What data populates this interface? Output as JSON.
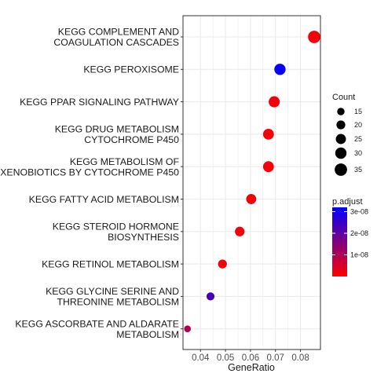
{
  "chart_data": {
    "type": "scatter",
    "title": "",
    "xlabel": "GeneRatio",
    "ylabel": "",
    "xlim": [
      0.033,
      0.088
    ],
    "x_ticks": [
      "0.04",
      "0.05",
      "0.06",
      "0.07",
      "0.08"
    ],
    "x_tick_values": [
      0.04,
      0.05,
      0.06,
      0.07,
      0.08
    ],
    "grid": true,
    "legend_position": "right",
    "terms": [
      {
        "label": [
          "KEGG COMPLEMENT AND",
          "COAGULATION CASCADES"
        ],
        "gene_ratio": 0.0855,
        "count": 35,
        "p_adjust": 1e-09
      },
      {
        "label": [
          "KEGG PEROXISOME"
        ],
        "gene_ratio": 0.0718,
        "count": 30,
        "p_adjust": 3.1e-08
      },
      {
        "label": [
          "KEGG PPAR SIGNALING PATHWAY"
        ],
        "gene_ratio": 0.0695,
        "count": 29,
        "p_adjust": 1.5e-09
      },
      {
        "label": [
          "KEGG DRUG METABOLISM",
          "CYTOCHROME P450"
        ],
        "gene_ratio": 0.0672,
        "count": 28,
        "p_adjust": 1e-09
      },
      {
        "label": [
          "KEGG METABOLISM OF",
          "XENOBIOTICS BY CYTOCHROME P450"
        ],
        "gene_ratio": 0.0672,
        "count": 28,
        "p_adjust": 1e-09
      },
      {
        "label": [
          "KEGG FATTY ACID METABOLISM"
        ],
        "gene_ratio": 0.0603,
        "count": 25,
        "p_adjust": 1.5e-09
      },
      {
        "label": [
          "KEGG STEROID HORMONE",
          "BIOSYNTHESIS"
        ],
        "gene_ratio": 0.0557,
        "count": 23,
        "p_adjust": 1.5e-09
      },
      {
        "label": [
          "KEGG RETINOL METABOLISM"
        ],
        "gene_ratio": 0.0488,
        "count": 20,
        "p_adjust": 1.5e-09
      },
      {
        "label": [
          "KEGG GLYCINE SERINE AND",
          "THREONINE METABOLISM"
        ],
        "gene_ratio": 0.044,
        "count": 17,
        "p_adjust": 2.3e-08
      },
      {
        "label": [
          "KEGG ASCORBATE AND ALDARATE",
          "METABOLISM"
        ],
        "gene_ratio": 0.0348,
        "count": 13,
        "p_adjust": 1e-08
      }
    ],
    "size_legend": {
      "title": "Count",
      "values": [
        15,
        20,
        25,
        30,
        35
      ],
      "labels": [
        "15",
        "20",
        "25",
        "30",
        "35"
      ]
    },
    "color_legend": {
      "title": "p.adjust",
      "min": 0,
      "max": 3.2e-08,
      "tick_values": [
        3e-08,
        2e-08,
        1e-08
      ],
      "tick_labels": [
        "3e-08",
        "2e-08",
        "1e-08"
      ],
      "color_low": "#ff0000",
      "color_high": "#0000ff"
    },
    "colors": {
      "panel_border": "#333333",
      "grid": "#ebebeb",
      "tick_text": "#4d4d4d"
    }
  }
}
